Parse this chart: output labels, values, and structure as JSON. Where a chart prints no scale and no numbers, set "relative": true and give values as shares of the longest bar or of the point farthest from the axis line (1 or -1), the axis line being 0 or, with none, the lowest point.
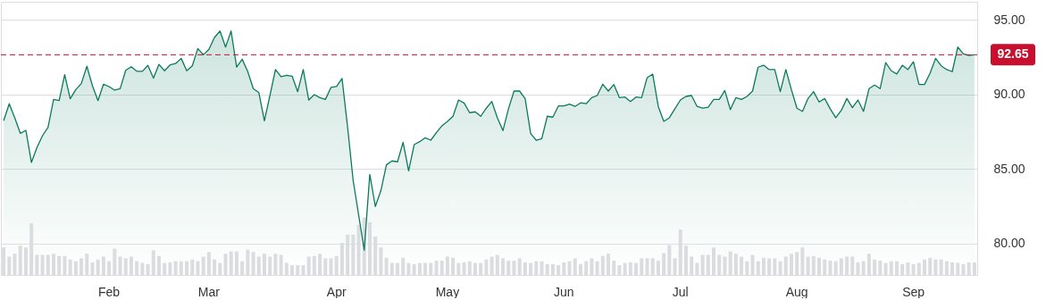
{
  "chart_data": [
    {
      "type": "area",
      "color": "#0b7a5c",
      "categories": [
        null,
        null,
        null,
        null,
        null,
        null,
        null,
        null,
        null,
        null,
        null,
        null,
        null,
        null,
        null,
        null,
        null,
        null,
        null,
        "Feb",
        null,
        null,
        null,
        null,
        null,
        null,
        null,
        null,
        null,
        null,
        null,
        null,
        null,
        null,
        null,
        null,
        null,
        "Mar",
        null,
        null,
        null,
        null,
        null,
        null,
        null,
        null,
        null,
        null,
        null,
        null,
        null,
        null,
        null,
        null,
        null,
        null,
        null,
        null,
        null,
        null,
        "Apr",
        null,
        null,
        null,
        null,
        null,
        null,
        null,
        null,
        null,
        null,
        null,
        null,
        null,
        null,
        null,
        null,
        null,
        null,
        null,
        "May",
        null,
        null,
        null,
        null,
        null,
        null,
        null,
        null,
        null,
        null,
        null,
        null,
        null,
        null,
        null,
        null,
        null,
        null,
        null,
        null,
        "Jun",
        null,
        null,
        null,
        null,
        null,
        null,
        null,
        null,
        null,
        null,
        null,
        null,
        null,
        null,
        null,
        null,
        null,
        null,
        null,
        null,
        "Jul",
        null,
        null,
        null,
        null,
        null,
        null,
        null,
        null,
        null,
        null,
        null,
        null,
        null,
        null,
        null,
        null,
        null,
        null,
        null,
        null,
        "Aug",
        null,
        null,
        null,
        null,
        null,
        null,
        null,
        null,
        null,
        null,
        null,
        null,
        null,
        null,
        null,
        null,
        null,
        null,
        null,
        null,
        "Sep",
        null,
        null,
        null,
        null,
        null,
        null,
        null,
        null,
        null,
        null,
        null
      ],
      "values": [
        88.23,
        89.37,
        88.43,
        87.39,
        87.59,
        85.44,
        86.44,
        87.23,
        87.79,
        89.66,
        89.58,
        91.32,
        89.7,
        90.32,
        90.72,
        91.88,
        90.58,
        89.58,
        90.68,
        90.52,
        90.28,
        90.38,
        91.61,
        91.85,
        91.55,
        91.54,
        91.94,
        91.08,
        92.01,
        91.58,
        91.97,
        92.06,
        92.41,
        91.58,
        91.91,
        93.07,
        92.65,
        93.01,
        93.81,
        94.24,
        93.17,
        94.24,
        91.82,
        92.35,
        91.52,
        90.38,
        90.12,
        88.23,
        89.92,
        91.66,
        91.18,
        91.28,
        91.22,
        90.18,
        91.66,
        89.62,
        89.98,
        89.78,
        89.66,
        90.46,
        90.52,
        91.06,
        87.8,
        84.24,
        81.9,
        79.56,
        84.64,
        82.49,
        83.55,
        85.28,
        85.54,
        85.48,
        86.79,
        84.88,
        86.63,
        86.83,
        87.09,
        86.93,
        87.43,
        87.89,
        88.19,
        88.53,
        89.62,
        89.42,
        88.77,
        88.83,
        88.53,
        89.07,
        89.52,
        88.43,
        87.57,
        89.03,
        90.22,
        90.22,
        89.72,
        87.37,
        86.93,
        87.03,
        88.53,
        88.47,
        89.22,
        89.22,
        89.34,
        89.19,
        89.43,
        89.37,
        89.78,
        89.92,
        90.68,
        90.22,
        90.66,
        89.78,
        89.82,
        89.52,
        89.82,
        89.78,
        91.12,
        91.36,
        89.19,
        88.19,
        88.43,
        89.03,
        89.62,
        89.86,
        89.92,
        89.19,
        89.07,
        89.13,
        89.66,
        89.66,
        90.26,
        88.98,
        89.78,
        89.66,
        89.86,
        90.22,
        91.82,
        91.95,
        91.66,
        91.66,
        90.18,
        91.66,
        90.32,
        89.07,
        88.86,
        89.72,
        90.18,
        89.49,
        89.72,
        89.03,
        88.43,
        88.92,
        89.72,
        89.11,
        89.62,
        88.86,
        90.38,
        90.62,
        90.38,
        92.12,
        91.58,
        91.36,
        91.95,
        91.66,
        92.18,
        90.66,
        90.66,
        91.42,
        92.41,
        91.91,
        91.66,
        91.52,
        93.17,
        92.71,
        92.61,
        92.65
      ],
      "ylim": [
        77.9,
        96.2
      ],
      "yticks": [
        {
          "value": 80,
          "label": "80.00"
        },
        {
          "value": 85,
          "label": "85.00"
        },
        {
          "value": 90,
          "label": "90.00"
        },
        {
          "value": 95,
          "label": "95.00"
        }
      ],
      "grid": "y",
      "ref_lines": [
        {
          "axis": "y",
          "value": 92.65,
          "label": "92.65",
          "color": "#c8102e",
          "line_style": "dashed"
        }
      ]
    },
    {
      "type": "bar",
      "relative": true,
      "color": "#dadcdf",
      "categories": [
        null,
        null,
        null,
        null,
        null,
        null,
        null,
        null,
        null,
        null,
        null,
        null,
        null,
        null,
        null,
        null,
        null,
        null,
        null,
        null,
        null,
        null,
        null,
        null,
        null,
        null,
        null,
        null,
        null,
        null,
        null,
        null,
        null,
        null,
        null,
        null,
        null,
        null,
        null,
        null,
        null,
        null,
        null,
        null,
        null,
        null,
        null,
        null,
        null,
        null,
        null,
        null,
        null,
        null,
        null,
        null,
        null,
        null,
        null,
        null,
        null,
        null,
        null,
        null,
        null,
        null,
        null,
        null,
        null,
        null,
        null,
        null,
        null,
        null,
        null,
        null,
        null,
        null,
        null,
        null,
        null,
        null,
        null,
        null,
        null,
        null,
        null,
        null,
        null,
        null,
        null,
        null,
        null,
        null,
        null,
        null,
        null,
        null,
        null,
        null,
        null,
        null,
        null,
        null,
        null,
        null,
        null,
        null,
        null,
        null,
        null,
        null,
        null,
        null,
        null,
        null,
        null,
        null,
        null,
        null,
        null,
        null,
        null,
        null,
        null,
        null,
        null,
        null,
        null,
        null,
        null,
        null,
        null,
        null,
        null,
        null,
        null,
        null,
        null,
        null,
        null,
        null,
        null,
        null,
        null,
        null,
        null,
        null,
        null,
        null,
        null,
        null,
        null,
        null,
        null,
        null,
        null,
        null,
        null,
        null,
        null,
        null,
        null,
        null,
        null,
        null,
        null,
        null,
        null,
        null,
        null,
        null,
        null,
        null,
        null,
        null
      ],
      "values": [
        0.48,
        0.32,
        0.37,
        0.51,
        0.48,
        0.9,
        0.35,
        0.35,
        0.35,
        0.37,
        0.33,
        0.33,
        0.27,
        0.24,
        0.29,
        0.37,
        0.22,
        0.27,
        0.32,
        0.24,
        0.46,
        0.32,
        0.29,
        0.32,
        0.24,
        0.21,
        0.19,
        0.43,
        0.33,
        0.21,
        0.22,
        0.24,
        0.24,
        0.24,
        0.27,
        0.24,
        0.32,
        0.4,
        0.27,
        0.21,
        0.37,
        0.41,
        0.41,
        0.24,
        0.44,
        0.4,
        0.32,
        0.37,
        0.32,
        0.37,
        0.35,
        0.21,
        0.17,
        0.17,
        0.17,
        0.32,
        0.33,
        0.37,
        0.29,
        0.29,
        0.33,
        0.56,
        0.7,
        0.7,
        0.87,
        1,
        0.92,
        0.67,
        0.48,
        0.3,
        0.21,
        0.21,
        0.3,
        0.21,
        0.19,
        0.21,
        0.21,
        0.21,
        0.25,
        0.25,
        0.32,
        0.3,
        0.21,
        0.22,
        0.24,
        0.21,
        0.21,
        0.27,
        0.32,
        0.35,
        0.29,
        0.25,
        0.25,
        0.29,
        0.22,
        0.21,
        0.24,
        0.24,
        0.19,
        0.19,
        0.17,
        0.22,
        0.24,
        0.29,
        0.19,
        0.24,
        0.29,
        0.24,
        0.33,
        0.37,
        0.25,
        0.17,
        0.21,
        0.22,
        0.21,
        0.29,
        0.29,
        0.29,
        0.25,
        0.38,
        0.52,
        0.29,
        0.79,
        0.51,
        0.32,
        0.21,
        0.35,
        0.35,
        0.48,
        0.35,
        0.32,
        0.41,
        0.37,
        0.32,
        0.24,
        0.35,
        0.24,
        0.3,
        0.29,
        0.29,
        0.24,
        0.32,
        0.37,
        0.4,
        0.48,
        0.32,
        0.33,
        0.3,
        0.27,
        0.25,
        0.24,
        0.29,
        0.32,
        0.32,
        0.22,
        0.24,
        0.37,
        0.27,
        0.25,
        0.21,
        0.24,
        0.24,
        0.19,
        0.22,
        0.19,
        0.21,
        0.27,
        0.3,
        0.27,
        0.27,
        0.24,
        0.22,
        0.21,
        0.19,
        0.22,
        0.22
      ]
    }
  ]
}
